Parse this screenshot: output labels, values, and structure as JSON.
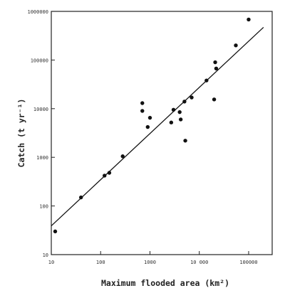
{
  "chart_data": {
    "type": "scatter",
    "xlabel": "Maximum flooded area (km²)",
    "ylabel": "Catch (t yr⁻¹)",
    "xscale": "log",
    "yscale": "log",
    "xlim": [
      10,
      300000
    ],
    "ylim": [
      10,
      1000000
    ],
    "x_ticks": [
      10,
      100,
      1000,
      10000,
      100000
    ],
    "x_tick_labels": [
      "10",
      "100",
      "1000",
      "10 000",
      "100000"
    ],
    "y_ticks": [
      10,
      100,
      1000,
      10000,
      100000,
      1000000
    ],
    "y_tick_labels": [
      "10",
      "100",
      "1000",
      "10000",
      "100000",
      "1000000"
    ],
    "grid": false,
    "points": [
      {
        "x": 12,
        "y": 30
      },
      {
        "x": 40,
        "y": 150
      },
      {
        "x": 120,
        "y": 420
      },
      {
        "x": 150,
        "y": 480
      },
      {
        "x": 280,
        "y": 1050
      },
      {
        "x": 700,
        "y": 13000
      },
      {
        "x": 700,
        "y": 9000
      },
      {
        "x": 900,
        "y": 4200
      },
      {
        "x": 1000,
        "y": 6500
      },
      {
        "x": 2700,
        "y": 5200
      },
      {
        "x": 3000,
        "y": 9500
      },
      {
        "x": 4000,
        "y": 8500
      },
      {
        "x": 4200,
        "y": 6000
      },
      {
        "x": 5000,
        "y": 14000
      },
      {
        "x": 5200,
        "y": 2200
      },
      {
        "x": 7000,
        "y": 17000
      },
      {
        "x": 14000,
        "y": 38000
      },
      {
        "x": 20000,
        "y": 15500
      },
      {
        "x": 21000,
        "y": 90000
      },
      {
        "x": 22000,
        "y": 67000
      },
      {
        "x": 55000,
        "y": 200000
      },
      {
        "x": 100000,
        "y": 680000
      }
    ],
    "fit_line": {
      "x": [
        10,
        200000
      ],
      "y": [
        39,
        470000
      ]
    }
  }
}
